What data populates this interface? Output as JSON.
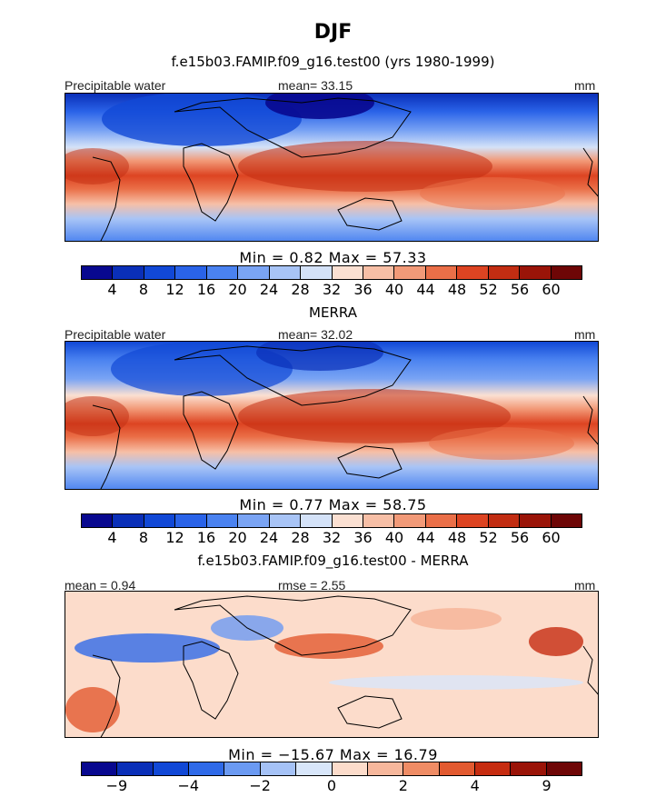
{
  "header": {
    "season": "DJF"
  },
  "chart_data": [
    {
      "type": "heatmap",
      "title": "f.e15b03.FAMIP.f09_g16.test00 (yrs 1980-1999)",
      "left_label": "Precipitable water",
      "center_label": "mean=  33.15",
      "right_label": "mm",
      "min_label": "Min =   0.82",
      "max_label": "Max =   57.33",
      "min": 0.82,
      "max": 57.33,
      "mean": 33.15,
      "levels": [
        4,
        8,
        12,
        16,
        20,
        24,
        28,
        32,
        36,
        40,
        44,
        48,
        52,
        56,
        60
      ],
      "tick_labels": [
        "4",
        "8",
        "12",
        "16",
        "20",
        "24",
        "28",
        "32",
        "36",
        "40",
        "44",
        "48",
        "52",
        "56",
        "60"
      ]
    },
    {
      "type": "heatmap",
      "title": "MERRA",
      "left_label": "Precipitable water",
      "center_label": "mean=  32.02",
      "right_label": "mm",
      "min_label": "Min =   0.77",
      "max_label": "Max =   58.75",
      "min": 0.77,
      "max": 58.75,
      "mean": 32.02,
      "levels": [
        4,
        8,
        12,
        16,
        20,
        24,
        28,
        32,
        36,
        40,
        44,
        48,
        52,
        56,
        60
      ],
      "tick_labels": [
        "4",
        "8",
        "12",
        "16",
        "20",
        "24",
        "28",
        "32",
        "36",
        "40",
        "44",
        "48",
        "52",
        "56",
        "60"
      ]
    },
    {
      "type": "heatmap",
      "title": "f.e15b03.FAMIP.f09_g16.test00 - MERRA",
      "left_label": "mean =   0.94",
      "center_label": "rmse =   2.55",
      "right_label": "mm",
      "min_label": "Min = −15.67",
      "max_label": "Max =  16.79",
      "min": -15.67,
      "max": 16.79,
      "mean": 0.94,
      "rmse": 2.55,
      "levels": [
        -9,
        -6,
        -4,
        -3,
        -2,
        -1,
        0,
        1,
        2,
        3,
        4,
        6,
        9
      ],
      "tick_labels": [
        "−9",
        "−4",
        "−2",
        "0",
        "2",
        "4",
        "9"
      ],
      "tick_level_index": [
        0,
        2,
        4,
        6,
        8,
        10,
        12
      ]
    }
  ],
  "colors": {
    "palette15": [
      "#08088f",
      "#0a2fb8",
      "#1148d6",
      "#2a63e8",
      "#4a82f0",
      "#7aa4f4",
      "#a8c4f6",
      "#d4e2f8",
      "#fbe0d2",
      "#f7bfa6",
      "#f29a78",
      "#ea6f48",
      "#dd4422",
      "#c22d12",
      "#9a1408",
      "#6e0606"
    ],
    "palette_diff": [
      "#08088f",
      "#0a2fb8",
      "#1148d6",
      "#2f6ae8",
      "#6b9af2",
      "#a5c2f6",
      "#d8e6fa",
      "#fcdccb",
      "#f6b79c",
      "#ef8c65",
      "#e25a30",
      "#c62c10",
      "#9a1408",
      "#6e0606"
    ]
  }
}
